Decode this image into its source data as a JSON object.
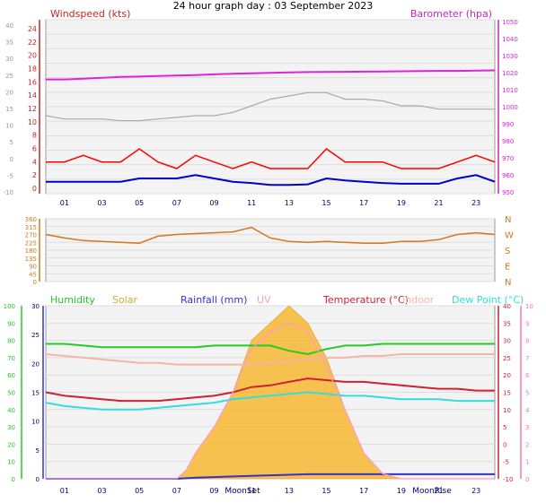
{
  "title": "24 hour graph day : 03 September 2023",
  "colors": {
    "wind": "#ee0000",
    "gust": "#ff0000",
    "avgwind": "#0000cc",
    "baro": "#dd22dd",
    "barotrend": "#aaaaaa",
    "winddir": "#d2781e",
    "humidity": "#22cc22",
    "solar": "#f7b733",
    "rain": "#3333cc",
    "uv": "#ff99cc",
    "temp": "#cc2233",
    "indoor": "#f5b5a5",
    "dew": "#33dddd",
    "leftaxis1": "#cc2222",
    "leftaxis3": "#22cc22",
    "rightaxis3": "#ff77aa"
  },
  "xaxis": {
    "ticks": [
      "01",
      "03",
      "05",
      "07",
      "09",
      "11",
      "13",
      "15",
      "17",
      "19",
      "21",
      "23"
    ],
    "bottom_ticks": [
      "01",
      "03",
      "05",
      "07",
      "09",
      "11",
      "13",
      "15",
      "17",
      "19",
      "21",
      "23"
    ],
    "moonset_label": "MoonSet",
    "moonrise_label": "MoonRise"
  },
  "chart_data": [
    {
      "type": "line",
      "panel": "wind_barometer",
      "left_title": "Windspeed (kts)",
      "right_title": "Barometer (hpa)",
      "left_ticks_red": [
        "24",
        "22",
        "20",
        "18",
        "16",
        "14",
        "12",
        "10",
        "8",
        "6",
        "4",
        "2",
        "0"
      ],
      "left_ticks_gray": [
        "40",
        "35",
        "30",
        "25",
        "20",
        "15",
        "10",
        "5",
        "0",
        "-5",
        "-10"
      ],
      "right_ticks": [
        "1050",
        "1040",
        "1030",
        "1020",
        "1010",
        "1000",
        "990",
        "980",
        "970",
        "960",
        "950"
      ],
      "ylim_wind": [
        0,
        24
      ],
      "ylim_baro": [
        950,
        1050
      ],
      "series": [
        {
          "key": "gust",
          "x": [
            0,
            1,
            2,
            3,
            4,
            5,
            6,
            7,
            8,
            9,
            10,
            11,
            12,
            13,
            14,
            15,
            16,
            17,
            18,
            19,
            20,
            21,
            22,
            23,
            24
          ],
          "values": [
            4,
            4,
            5,
            4,
            4,
            6,
            4,
            3,
            5,
            4,
            3,
            4,
            3,
            3,
            3,
            6,
            4,
            4,
            4,
            3,
            3,
            3,
            4,
            5,
            4
          ]
        },
        {
          "key": "avgwind",
          "x": [
            0,
            1,
            2,
            3,
            4,
            5,
            6,
            7,
            8,
            9,
            10,
            11,
            12,
            13,
            14,
            15,
            16,
            17,
            18,
            19,
            20,
            21,
            22,
            23,
            24
          ],
          "values": [
            1,
            1,
            1,
            1,
            1,
            1.5,
            1.5,
            1.5,
            2,
            1.5,
            1,
            0.8,
            0.5,
            0.5,
            0.6,
            1.5,
            1.2,
            1,
            0.8,
            0.7,
            0.7,
            0.7,
            1.5,
            2,
            1
          ]
        },
        {
          "key": "baro",
          "x": [
            0,
            1,
            2,
            3,
            4,
            5,
            6,
            7,
            8,
            9,
            10,
            11,
            12,
            13,
            14,
            15,
            16,
            17,
            18,
            19,
            20,
            21,
            22,
            23,
            24
          ],
          "values": [
            1016,
            1016,
            1016.5,
            1017,
            1017.5,
            1017.7,
            1018,
            1018.3,
            1018.6,
            1019,
            1019.3,
            1019.6,
            1019.9,
            1020.1,
            1020.3,
            1020.4,
            1020.5,
            1020.6,
            1020.7,
            1020.8,
            1020.9,
            1021,
            1021,
            1021.2,
            1021.3
          ]
        },
        {
          "key": "barotrend",
          "x": [
            0,
            1,
            2,
            3,
            4,
            5,
            6,
            7,
            8,
            9,
            10,
            11,
            12,
            13,
            14,
            15,
            16,
            17,
            18,
            19,
            20,
            21,
            22,
            23,
            24
          ],
          "values": [
            12,
            11,
            11,
            11,
            10.5,
            10.5,
            11,
            11.5,
            12,
            12,
            13,
            15,
            17,
            18,
            19,
            19,
            17,
            17,
            16.5,
            15,
            15,
            14,
            14,
            14,
            14
          ]
        }
      ]
    },
    {
      "type": "line",
      "panel": "wind_direction",
      "left_ticks": [
        "360",
        "315",
        "270",
        "225",
        "180",
        "135",
        "90",
        "45",
        "0"
      ],
      "right_ticks": [
        "N",
        "W",
        "S",
        "E",
        "N"
      ],
      "ylim": [
        0,
        360
      ],
      "series": [
        {
          "key": "winddir",
          "x": [
            0,
            1,
            2,
            3,
            4,
            5,
            6,
            7,
            8,
            9,
            10,
            11,
            11.5,
            12,
            13,
            14,
            15,
            16,
            17,
            18,
            19,
            20,
            21,
            22,
            23,
            24
          ],
          "values": [
            270,
            250,
            235,
            230,
            225,
            220,
            260,
            270,
            275,
            280,
            285,
            310,
            280,
            250,
            230,
            225,
            230,
            225,
            220,
            220,
            230,
            230,
            240,
            270,
            280,
            270
          ]
        }
      ]
    },
    {
      "type": "line",
      "panel": "temperature_humidity",
      "legend": [
        "Humidity",
        "Solar",
        "Rainfall (mm)",
        "UV",
        "Temperature (°C)",
        "Indoor",
        "Dew Point (°C)"
      ],
      "left_ticks_green": [
        "100",
        "90",
        "80",
        "70",
        "60",
        "50",
        "40",
        "30",
        "20",
        "10",
        "0"
      ],
      "left_ticks_blue": [
        "30",
        "25",
        "20",
        "15",
        "10",
        "5",
        "0"
      ],
      "right_ticks_red": [
        "40",
        "35",
        "30",
        "25",
        "20",
        "15",
        "10",
        "5",
        "0",
        "-5",
        "-10"
      ],
      "right_ticks_pink": [
        "10",
        "9",
        "8",
        "7",
        "6",
        "5",
        "4",
        "3",
        "2",
        "1",
        "0"
      ],
      "ylim_temp": [
        -10,
        40
      ],
      "ylim_humidity": [
        0,
        100
      ],
      "series": [
        {
          "key": "humidity",
          "x": [
            0,
            1,
            2,
            3,
            4,
            5,
            6,
            7,
            8,
            9,
            10,
            11,
            12,
            13,
            14,
            15,
            16,
            17,
            18,
            19,
            20,
            21,
            22,
            23,
            24
          ],
          "values": [
            78,
            78,
            77,
            76,
            76,
            76,
            76,
            76,
            76,
            77,
            77,
            77,
            77,
            74,
            72,
            75,
            77,
            77,
            78,
            78,
            78,
            78,
            78,
            78,
            78
          ]
        },
        {
          "key": "indoor",
          "x": [
            0,
            1,
            2,
            3,
            4,
            5,
            6,
            7,
            8,
            9,
            10,
            11,
            12,
            13,
            14,
            15,
            16,
            17,
            18,
            19,
            20,
            21,
            22,
            23,
            24
          ],
          "values": [
            26,
            25.5,
            25,
            24.5,
            24,
            23.5,
            23.5,
            23,
            23,
            23,
            23,
            23,
            23.5,
            24,
            24.5,
            25,
            25,
            25.5,
            25.5,
            26,
            26,
            26,
            26,
            26,
            26
          ]
        },
        {
          "key": "temp",
          "x": [
            0,
            1,
            2,
            3,
            4,
            5,
            6,
            7,
            8,
            9,
            10,
            11,
            12,
            13,
            14,
            15,
            16,
            17,
            18,
            19,
            20,
            21,
            22,
            23,
            24
          ],
          "values": [
            15,
            14,
            13.5,
            13,
            12.5,
            12.5,
            12.5,
            13,
            13.5,
            14,
            15,
            16.5,
            17,
            18,
            19,
            18.5,
            18,
            18,
            17.5,
            17,
            16.5,
            16,
            16,
            15.5,
            15.5
          ]
        },
        {
          "key": "dew",
          "x": [
            0,
            1,
            2,
            3,
            4,
            5,
            6,
            7,
            8,
            9,
            10,
            11,
            12,
            13,
            14,
            15,
            16,
            17,
            18,
            19,
            20,
            21,
            22,
            23,
            24
          ],
          "values": [
            12,
            11,
            10.5,
            10,
            10,
            10,
            10.5,
            11,
            11.5,
            12,
            13,
            13.5,
            14,
            14.5,
            15,
            14.5,
            14,
            14,
            13.5,
            13,
            13,
            13,
            12.5,
            12.5,
            12.5
          ]
        },
        {
          "key": "rain",
          "x": [
            0,
            1,
            2,
            3,
            4,
            5,
            6,
            7,
            8,
            9,
            10,
            11,
            12,
            13,
            14,
            15,
            16,
            17,
            18,
            19,
            20,
            21,
            22,
            23,
            24
          ],
          "values": [
            0,
            0,
            0,
            0,
            0,
            0,
            0,
            0,
            0.2,
            0.3,
            0.4,
            0.5,
            0.6,
            0.7,
            0.8,
            0.8,
            0.8,
            0.8,
            0.8,
            0.8,
            0.8,
            0.8,
            0.8,
            0.8,
            0.8
          ]
        },
        {
          "key": "solar",
          "x": [
            0,
            1,
            2,
            3,
            4,
            5,
            6,
            7,
            7.5,
            8,
            9,
            10,
            11,
            12,
            13,
            14,
            15,
            16,
            17,
            18,
            19,
            20,
            21,
            22,
            23,
            24
          ],
          "values": [
            0,
            0,
            0,
            0,
            0,
            0,
            0,
            0,
            0.5,
            1.5,
            3,
            5,
            8,
            9,
            10,
            9,
            7,
            4,
            1.5,
            0.3,
            0,
            0,
            0,
            0,
            0,
            0
          ]
        },
        {
          "key": "uv",
          "x": [
            0,
            1,
            2,
            3,
            4,
            5,
            6,
            7,
            7.5,
            8,
            9,
            10,
            11,
            12,
            13,
            14,
            15,
            16,
            17,
            18,
            19,
            20,
            21,
            22,
            23,
            24
          ],
          "values": [
            0,
            0,
            0,
            0,
            0,
            0,
            0,
            0,
            0.5,
            1.5,
            3,
            5,
            7.5,
            8.5,
            9,
            8.5,
            6.5,
            4,
            1.5,
            0.3,
            0,
            0,
            0,
            0,
            0,
            0
          ]
        }
      ]
    }
  ]
}
